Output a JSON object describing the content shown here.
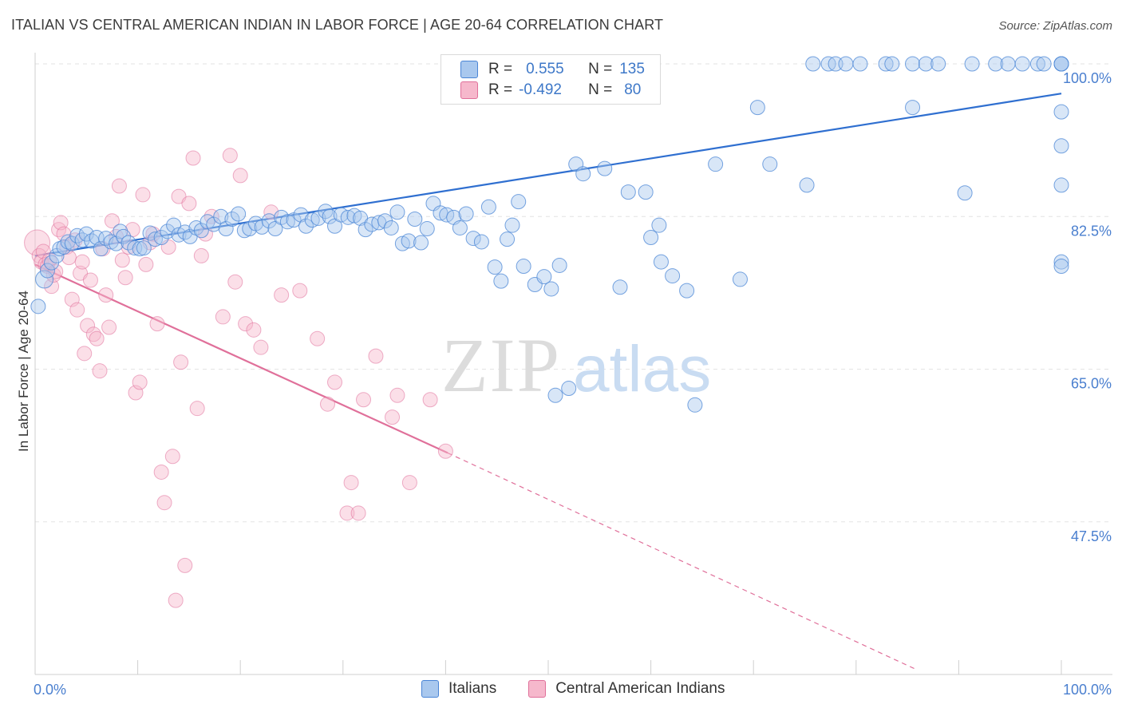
{
  "title": "ITALIAN VS CENTRAL AMERICAN INDIAN IN LABOR FORCE | AGE 20-64 CORRELATION CHART",
  "source": "Source: ZipAtlas.com",
  "watermark": {
    "zip": "ZIP",
    "atlas": "atlas"
  },
  "colors": {
    "blue": "#4a85d6",
    "blue_fill": "#a9c8ee",
    "pink": "#e0709a",
    "pink_fill": "#f6b8cc",
    "axis_text": "#4a7fcf",
    "grid": "#e3e3e3"
  },
  "legend": {
    "rows": [
      {
        "r_label": "R =",
        "r_value": "0.555",
        "n_label": "N =",
        "n_value": "135",
        "color": "#a9c8ee"
      },
      {
        "r_label": "R =",
        "r_value": "-0.492",
        "n_label": "N =",
        "n_value": "80",
        "color": "#f6b8cc"
      }
    ]
  },
  "bottom_legend": [
    {
      "label": "Italians",
      "color": "#a9c8ee"
    },
    {
      "label": "Central American Indians",
      "color": "#f6b8cc"
    }
  ],
  "chart_data": {
    "type": "scatter",
    "title": "ITALIAN VS CENTRAL AMERICAN INDIAN IN LABOR FORCE | AGE 20-64 CORRELATION CHART",
    "xlabel": "",
    "ylabel": "In Labor Force | Age 20-64",
    "xlim": [
      0,
      100
    ],
    "ylim": [
      30,
      101
    ],
    "x_tick_labels": [
      "0.0%",
      "100.0%"
    ],
    "y_ticks": [
      47.5,
      65.0,
      82.5,
      100.0
    ],
    "y_tick_labels": [
      "47.5%",
      "65.0%",
      "82.5%",
      "100.0%"
    ],
    "grid": true,
    "legend_position": "top-center",
    "series": [
      {
        "name": "Italians",
        "color": "#4a85d6",
        "trend": {
          "x": [
            0,
            100
          ],
          "y": [
            78.0,
            96.6
          ]
        },
        "points": [
          [
            0.3,
            72.2
          ],
          [
            0.9,
            75.3
          ],
          [
            1.2,
            76.3
          ],
          [
            1.6,
            77.2
          ],
          [
            2.1,
            78.0
          ],
          [
            2.4,
            78.8
          ],
          [
            2.8,
            79.0
          ],
          [
            3.2,
            79.6
          ],
          [
            3.6,
            79.4
          ],
          [
            4.1,
            80.3
          ],
          [
            4.6,
            79.8
          ],
          [
            5.0,
            80.5
          ],
          [
            5.5,
            79.7
          ],
          [
            6.0,
            80.1
          ],
          [
            6.4,
            78.8
          ],
          [
            6.9,
            80.0
          ],
          [
            7.4,
            79.6
          ],
          [
            7.9,
            79.4
          ],
          [
            8.3,
            80.8
          ],
          [
            8.6,
            80.2
          ],
          [
            9.1,
            79.5
          ],
          [
            9.7,
            78.9
          ],
          [
            10.2,
            78.8
          ],
          [
            10.6,
            78.9
          ],
          [
            11.2,
            80.6
          ],
          [
            11.7,
            79.9
          ],
          [
            12.3,
            80.1
          ],
          [
            12.9,
            80.8
          ],
          [
            13.5,
            81.5
          ],
          [
            14.0,
            80.4
          ],
          [
            14.6,
            80.7
          ],
          [
            15.1,
            80.2
          ],
          [
            15.7,
            81.2
          ],
          [
            16.2,
            80.9
          ],
          [
            16.8,
            81.9
          ],
          [
            17.4,
            81.6
          ],
          [
            18.1,
            82.5
          ],
          [
            18.6,
            81.1
          ],
          [
            19.2,
            82.2
          ],
          [
            19.8,
            82.8
          ],
          [
            20.4,
            80.9
          ],
          [
            20.9,
            81.1
          ],
          [
            21.5,
            81.7
          ],
          [
            22.1,
            81.3
          ],
          [
            22.8,
            82.0
          ],
          [
            23.4,
            81.1
          ],
          [
            24.0,
            82.4
          ],
          [
            24.6,
            81.9
          ],
          [
            25.2,
            82.1
          ],
          [
            25.9,
            82.7
          ],
          [
            26.4,
            81.4
          ],
          [
            27.0,
            82.1
          ],
          [
            27.6,
            82.3
          ],
          [
            28.3,
            83.1
          ],
          [
            28.7,
            82.5
          ],
          [
            29.2,
            81.4
          ],
          [
            29.8,
            82.7
          ],
          [
            30.5,
            82.4
          ],
          [
            31.1,
            82.6
          ],
          [
            31.7,
            82.3
          ],
          [
            32.2,
            81.0
          ],
          [
            32.8,
            81.6
          ],
          [
            33.5,
            81.8
          ],
          [
            34.1,
            82.0
          ],
          [
            34.7,
            81.2
          ],
          [
            35.3,
            83.0
          ],
          [
            35.8,
            79.4
          ],
          [
            36.4,
            79.7
          ],
          [
            37.0,
            82.2
          ],
          [
            37.6,
            79.5
          ],
          [
            38.2,
            81.1
          ],
          [
            38.8,
            84.0
          ],
          [
            39.5,
            82.9
          ],
          [
            40.1,
            82.7
          ],
          [
            40.8,
            82.4
          ],
          [
            41.4,
            81.2
          ],
          [
            42.0,
            82.8
          ],
          [
            42.7,
            80.0
          ],
          [
            43.5,
            79.6
          ],
          [
            44.2,
            83.6
          ],
          [
            44.8,
            76.7
          ],
          [
            45.4,
            75.1
          ],
          [
            46.0,
            79.9
          ],
          [
            46.5,
            81.5
          ],
          [
            47.1,
            84.2
          ],
          [
            47.6,
            76.8
          ],
          [
            48.7,
            74.7
          ],
          [
            49.6,
            75.6
          ],
          [
            50.3,
            74.2
          ],
          [
            50.7,
            62.0
          ],
          [
            51.1,
            76.9
          ],
          [
            52.0,
            62.8
          ],
          [
            52.7,
            88.5
          ],
          [
            53.4,
            87.4
          ],
          [
            55.5,
            88.0
          ],
          [
            57.0,
            74.4
          ],
          [
            57.8,
            85.3
          ],
          [
            59.5,
            85.3
          ],
          [
            60.0,
            80.1
          ],
          [
            60.8,
            81.5
          ],
          [
            61.0,
            77.3
          ],
          [
            62.1,
            75.7
          ],
          [
            63.5,
            74.0
          ],
          [
            64.3,
            60.9
          ],
          [
            66.3,
            88.5
          ],
          [
            68.7,
            75.3
          ],
          [
            70.4,
            95.0
          ],
          [
            71.6,
            88.5
          ],
          [
            75.2,
            86.1
          ],
          [
            75.8,
            100.0
          ],
          [
            77.3,
            100.0
          ],
          [
            78.0,
            100.0
          ],
          [
            79.0,
            100.0
          ],
          [
            80.4,
            100.0
          ],
          [
            82.9,
            100.0
          ],
          [
            83.5,
            100.0
          ],
          [
            85.5,
            95.0
          ],
          [
            85.5,
            100.0
          ],
          [
            86.8,
            100.0
          ],
          [
            88.0,
            100.0
          ],
          [
            90.6,
            85.2
          ],
          [
            91.3,
            100.0
          ],
          [
            93.6,
            100.0
          ],
          [
            94.8,
            100.0
          ],
          [
            96.2,
            100.0
          ],
          [
            97.7,
            100.0
          ],
          [
            98.3,
            100.0
          ],
          [
            100.0,
            100.0
          ],
          [
            100.0,
            86.1
          ],
          [
            100.0,
            77.3
          ],
          [
            100.0,
            76.8
          ],
          [
            100.0,
            94.5
          ],
          [
            100.0,
            90.6
          ],
          [
            100.0,
            100.0
          ],
          [
            100.0,
            100.0
          ]
        ]
      },
      {
        "name": "Central American Indians",
        "color": "#e0709a",
        "trend": {
          "x": [
            0,
            40.2
          ],
          "y": [
            77.0,
            55.4
          ]
        },
        "trend_dashed": {
          "x": [
            40.2,
            86.0
          ],
          "y": [
            55.4,
            30.5
          ]
        },
        "points": [
          [
            0.2,
            79.5
          ],
          [
            0.4,
            78.0
          ],
          [
            0.6,
            77.3
          ],
          [
            0.8,
            78.5
          ],
          [
            1.0,
            77.0
          ],
          [
            1.2,
            76.8
          ],
          [
            1.4,
            77.5
          ],
          [
            1.6,
            74.5
          ],
          [
            1.8,
            75.8
          ],
          [
            2.0,
            76.2
          ],
          [
            2.3,
            81.0
          ],
          [
            2.5,
            81.8
          ],
          [
            2.8,
            80.5
          ],
          [
            3.1,
            79.0
          ],
          [
            3.3,
            77.8
          ],
          [
            3.6,
            73.0
          ],
          [
            3.9,
            79.8
          ],
          [
            4.1,
            71.8
          ],
          [
            4.4,
            76.0
          ],
          [
            4.6,
            77.3
          ],
          [
            4.8,
            66.8
          ],
          [
            5.1,
            70.0
          ],
          [
            5.4,
            75.2
          ],
          [
            5.7,
            69.0
          ],
          [
            6.0,
            68.5
          ],
          [
            6.3,
            64.8
          ],
          [
            6.6,
            78.8
          ],
          [
            6.9,
            73.5
          ],
          [
            7.2,
            69.8
          ],
          [
            7.5,
            82.0
          ],
          [
            7.9,
            80.2
          ],
          [
            8.2,
            86.0
          ],
          [
            8.5,
            77.5
          ],
          [
            8.8,
            75.5
          ],
          [
            9.1,
            79.0
          ],
          [
            9.5,
            81.0
          ],
          [
            9.8,
            62.3
          ],
          [
            10.2,
            63.5
          ],
          [
            10.5,
            85.0
          ],
          [
            10.8,
            77.0
          ],
          [
            11.2,
            79.5
          ],
          [
            11.5,
            80.5
          ],
          [
            11.9,
            70.2
          ],
          [
            12.3,
            53.2
          ],
          [
            12.6,
            49.7
          ],
          [
            13.0,
            79.0
          ],
          [
            13.4,
            55.0
          ],
          [
            13.7,
            38.5
          ],
          [
            14.0,
            84.8
          ],
          [
            14.2,
            65.8
          ],
          [
            14.6,
            42.5
          ],
          [
            15.0,
            84.0
          ],
          [
            15.4,
            89.2
          ],
          [
            15.8,
            60.5
          ],
          [
            16.2,
            78.0
          ],
          [
            16.6,
            80.5
          ],
          [
            17.2,
            82.5
          ],
          [
            18.3,
            71.0
          ],
          [
            19.0,
            89.5
          ],
          [
            19.5,
            75.0
          ],
          [
            20.0,
            87.2
          ],
          [
            20.5,
            70.2
          ],
          [
            21.3,
            69.5
          ],
          [
            22.0,
            67.5
          ],
          [
            23.0,
            83.0
          ],
          [
            24.0,
            73.5
          ],
          [
            25.8,
            74.0
          ],
          [
            27.5,
            68.5
          ],
          [
            28.5,
            61.0
          ],
          [
            29.2,
            63.5
          ],
          [
            30.4,
            48.5
          ],
          [
            30.8,
            52.0
          ],
          [
            31.5,
            48.5
          ],
          [
            32.0,
            61.5
          ],
          [
            33.2,
            66.5
          ],
          [
            34.8,
            59.5
          ],
          [
            35.3,
            62.0
          ],
          [
            36.5,
            52.0
          ],
          [
            38.5,
            61.5
          ],
          [
            40.0,
            55.6
          ]
        ]
      }
    ]
  }
}
